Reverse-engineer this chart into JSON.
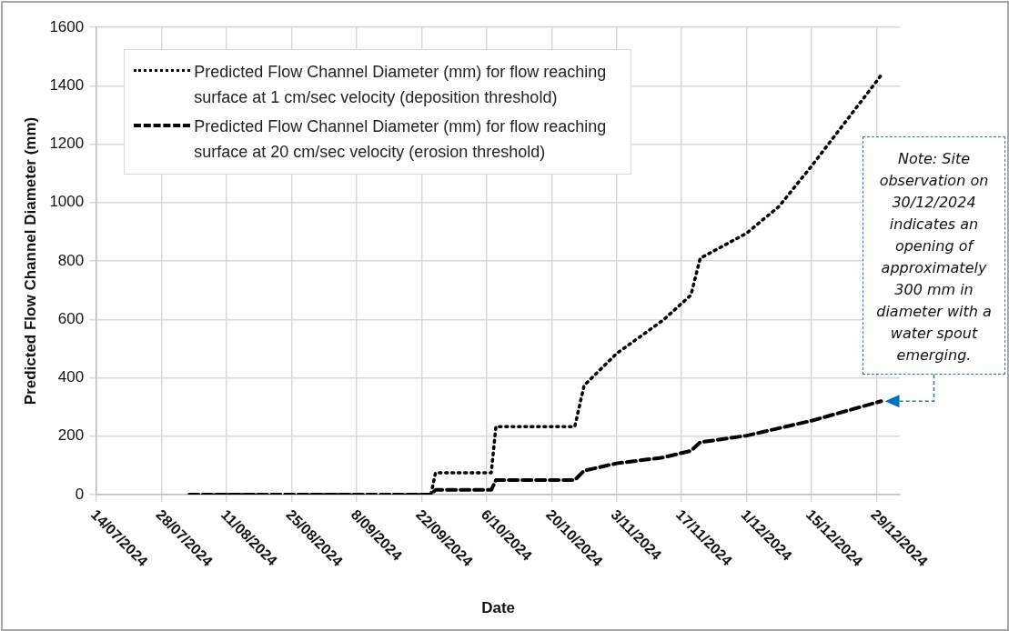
{
  "chart_data": {
    "type": "line",
    "xlabel": "Date",
    "ylabel": "Predicted Flow Channel Diameter (mm)",
    "xlim": [
      "2024-07-14",
      "2025-01-03"
    ],
    "xticks": [
      {
        "value": "2024-07-14",
        "label": "14/07/2024"
      },
      {
        "value": "2024-07-28",
        "label": "28/07/2024"
      },
      {
        "value": "2024-08-11",
        "label": "11/08/2024"
      },
      {
        "value": "2024-08-25",
        "label": "25/08/2024"
      },
      {
        "value": "2024-09-08",
        "label": "8/09/2024"
      },
      {
        "value": "2024-09-22",
        "label": "22/09/2024"
      },
      {
        "value": "2024-10-06",
        "label": "6/10/2024"
      },
      {
        "value": "2024-10-20",
        "label": "20/10/2024"
      },
      {
        "value": "2024-11-03",
        "label": "3/11/2024"
      },
      {
        "value": "2024-11-17",
        "label": "17/11/2024"
      },
      {
        "value": "2024-12-01",
        "label": "1/12/2024"
      },
      {
        "value": "2024-12-15",
        "label": "15/12/2024"
      },
      {
        "value": "2024-12-29",
        "label": "29/12/2024"
      }
    ],
    "ylim": [
      0,
      1600
    ],
    "yticks": [
      0,
      200,
      400,
      600,
      800,
      1000,
      1200,
      1400,
      1600
    ],
    "grid": true,
    "legend": "top left",
    "marker": "none",
    "series": [
      {
        "name": "Predicted Flow Channel Diameter (mm) for flow reaching surface at 1 cm/sec velocity (deposition threshold)",
        "color": "#000000",
        "line_style": "dotted",
        "x": [
          "2024-08-03",
          "2024-09-24",
          "2024-09-25",
          "2024-10-07",
          "2024-10-08",
          "2024-10-25",
          "2024-10-27",
          "2024-11-03",
          "2024-11-13",
          "2024-11-19",
          "2024-11-21",
          "2024-12-01",
          "2024-12-08",
          "2024-12-15",
          "2024-12-30"
        ],
        "values": [
          0,
          0,
          75,
          75,
          233,
          233,
          374,
          483,
          597,
          683,
          809,
          895,
          987,
          1125,
          1436
        ]
      },
      {
        "name": "Predicted Flow Channel Diameter (mm) for flow reaching surface at 20 cm/sec velocity (erosion threshold)",
        "color": "#000000",
        "line_style": "dashed",
        "x": [
          "2024-08-03",
          "2024-09-24",
          "2024-09-25",
          "2024-10-07",
          "2024-10-08",
          "2024-10-25",
          "2024-10-27",
          "2024-11-03",
          "2024-11-13",
          "2024-11-19",
          "2024-11-21",
          "2024-12-01",
          "2024-12-15",
          "2024-12-30"
        ],
        "values": [
          0,
          0,
          16,
          16,
          50,
          50,
          82,
          107,
          127,
          150,
          179,
          202,
          253,
          320
        ]
      }
    ],
    "annotations": [
      "Note: Site observation on 30/12/2024 indicates an opening of approximately 300 mm in diameter with a water spout emerging."
    ]
  }
}
